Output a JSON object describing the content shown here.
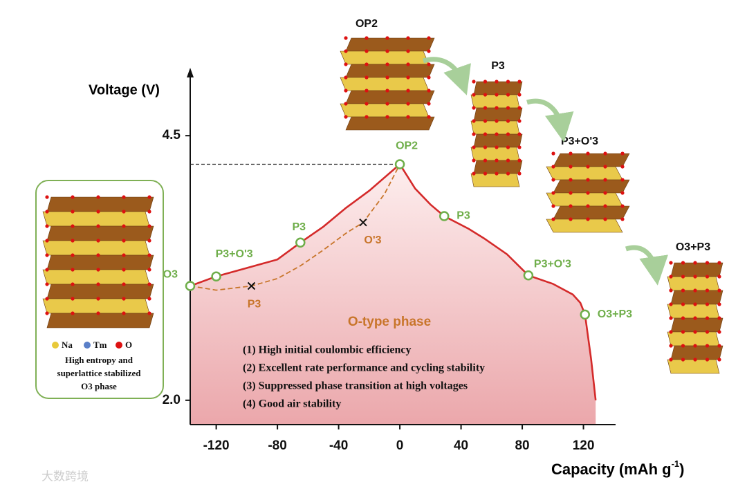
{
  "chart_data": {
    "type": "line",
    "ylabel": "Voltage (V)",
    "xlabel": "Capacity (mAh g",
    "xlabel_sup": "-1",
    "xlabel_end": ")",
    "xlim": [
      -137,
      141
    ],
    "ylim": [
      1.77,
      5.05
    ],
    "xticks": [
      -120,
      -80,
      -40,
      0,
      40,
      80,
      120
    ],
    "yticks": [
      4.5,
      {
        "value": 2,
        "label": "2.0"
      }
    ],
    "lines": [
      {
        "style": "solid",
        "color": "#d42a2a",
        "x": [
          -137,
          -120,
          -100,
          -80,
          -65,
          -50,
          -35,
          -20,
          0,
          10,
          20,
          29,
          45,
          55,
          70,
          84,
          100,
          113,
          118,
          121,
          123,
          125,
          128
        ],
        "values": [
          3.08,
          3.17,
          3.25,
          3.33,
          3.49,
          3.64,
          3.82,
          3.98,
          4.23,
          4.0,
          3.85,
          3.74,
          3.62,
          3.53,
          3.38,
          3.18,
          3.1,
          3.0,
          2.92,
          2.81,
          2.6,
          2.39,
          2.0
        ]
      },
      {
        "style": "dashed",
        "color": "#c8752a",
        "x": [
          -137,
          -120,
          -97,
          -80,
          -65,
          -50,
          -35,
          -24,
          -10,
          0
        ],
        "values": [
          3.08,
          3.04,
          3.08,
          3.15,
          3.27,
          3.42,
          3.58,
          3.68,
          3.95,
          4.23
        ]
      }
    ],
    "circle_points": [
      {
        "label": "O3",
        "x": -137,
        "y": 3.08
      },
      {
        "label": "P3+O'3",
        "x": -120,
        "y": 3.17
      },
      {
        "label": "P3",
        "x": -65,
        "y": 3.49
      },
      {
        "label": "OP2",
        "x": 0,
        "y": 4.23
      },
      {
        "label": "P3",
        "x": 29,
        "y": 3.74
      },
      {
        "label": "P3+O'3",
        "x": 84,
        "y": 3.18
      },
      {
        "label": "O3+P3",
        "x": 121,
        "y": 2.81
      }
    ],
    "cross_points": [
      {
        "label": "P3",
        "x": -97,
        "y": 3.08
      },
      {
        "label": "O'3",
        "x": -24,
        "y": 3.68
      }
    ],
    "phase_title": "O-type phase",
    "features": [
      "(1) High initial coulombic efficiency",
      "(2) Excellent rate performance and cycling stability",
      "(3) Suppressed phase transition at high voltages",
      "(4) Good air stability"
    ],
    "structures": [
      "OP2",
      "P3",
      "P3+O'3",
      "O3+P3"
    ],
    "inset": {
      "legend": [
        "Na",
        "Tm",
        "O"
      ],
      "caption": [
        "High entropy and",
        "superlattice stabilized",
        "O3 phase"
      ]
    },
    "watermark": "大数跨境"
  }
}
